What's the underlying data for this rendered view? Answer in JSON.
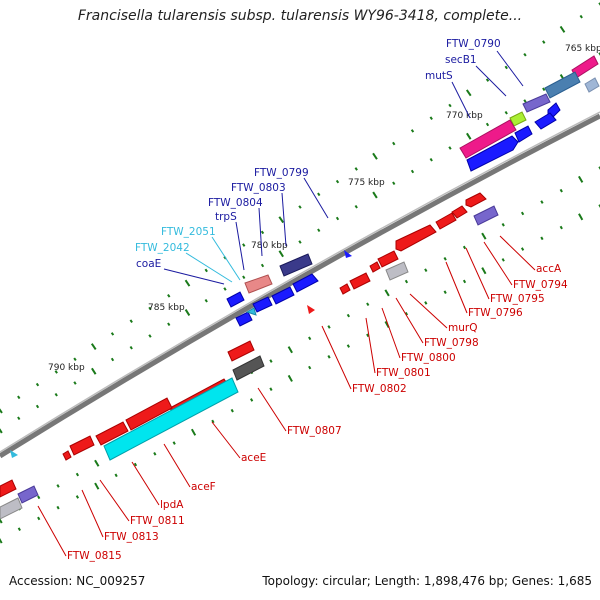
{
  "title": "Francisella tularensis subsp. tularensis WY96-3418, complete...",
  "footer": {
    "accession": "Accession: NC_009257",
    "summary": "Topology: circular; Length: 1,898,476 bp; Genes: 1,685"
  },
  "kbp_marks": [
    "765 kbp",
    "770 kbp",
    "775 kbp",
    "780 kbp",
    "785 kbp",
    "790 kbp"
  ],
  "upper_labels": [
    "FTW_0790",
    "secB1",
    "mutS",
    "FTW_0799",
    "FTW_0803",
    "FTW_0804",
    "trpS",
    "FTW_2051",
    "FTW_2042",
    "coaE"
  ],
  "lower_labels": [
    "accA",
    "FTW_0794",
    "FTW_0795",
    "FTW_0796",
    "murQ",
    "FTW_0798",
    "FTW_0800",
    "FTW_0801",
    "FTW_0802",
    "FTW_0807",
    "aceE",
    "aceF",
    "lpdA",
    "FTW_0811",
    "FTW_0813",
    "FTW_0815"
  ],
  "colors": {
    "forward_gene": "#0000ee",
    "reverse_gene": "#ee0000",
    "rRNA": "#00e5ee",
    "pink_gene": "#ee1a8a",
    "backbone": "#777777",
    "tick": "#1a7a1a",
    "label_dark_blue": "#1a1aa0",
    "label_light_blue": "#33bbdd",
    "label_red": "#cc0000"
  }
}
